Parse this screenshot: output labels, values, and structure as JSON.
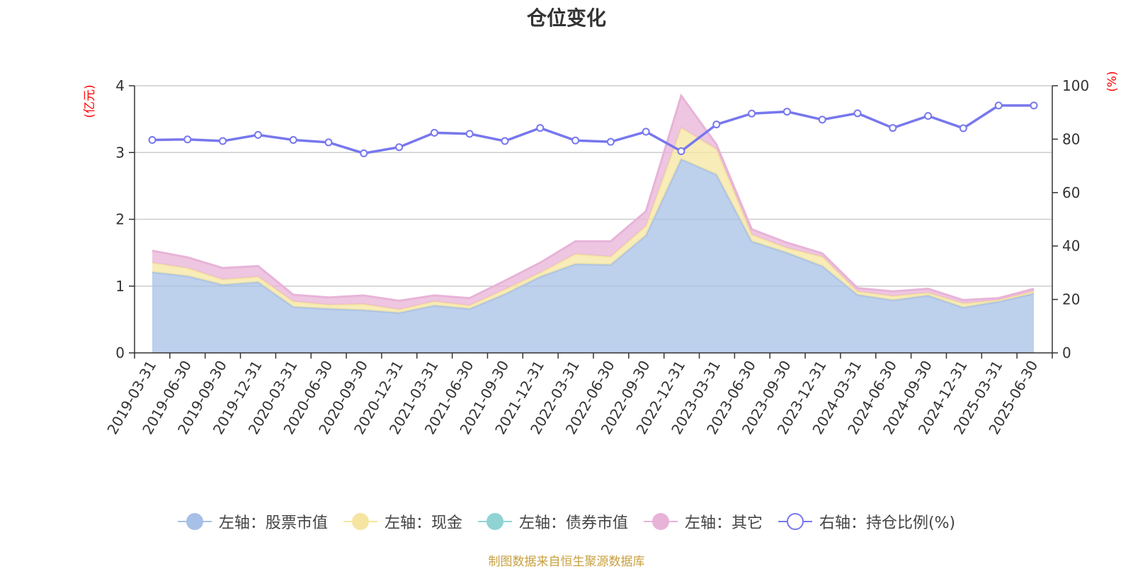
{
  "title": "仓位变化",
  "source": "制图数据来自恒生聚源数据库",
  "left_unit": "(亿元)",
  "right_unit": "(%)",
  "chart_data": {
    "type": "area",
    "title": "仓位变化",
    "categories": [
      "2019-03-31",
      "2019-06-30",
      "2019-09-30",
      "2019-12-31",
      "2020-03-31",
      "2020-06-30",
      "2020-09-30",
      "2020-12-31",
      "2021-03-31",
      "2021-06-30",
      "2021-09-30",
      "2021-12-31",
      "2022-03-31",
      "2022-06-30",
      "2022-09-30",
      "2022-12-31",
      "2023-03-31",
      "2023-06-30",
      "2023-09-30",
      "2023-12-31",
      "2024-03-31",
      "2024-06-30",
      "2024-09-30",
      "2024-12-31",
      "2025-03-31",
      "2025-06-30"
    ],
    "left_axis": {
      "ylim": [
        0,
        4
      ],
      "ticks": [
        "0",
        "1",
        "2",
        "3",
        "4"
      ],
      "unit": "(亿元)"
    },
    "right_axis": {
      "ylim": [
        0,
        100
      ],
      "ticks": [
        "0",
        "20",
        "40",
        "60",
        "80",
        "100"
      ],
      "unit": "(%)"
    },
    "series": [
      {
        "name": "左轴：股票市值",
        "axis": "left",
        "stack": true,
        "color": "#a7c0e6",
        "values": [
          1.21,
          1.15,
          1.02,
          1.06,
          0.69,
          0.66,
          0.64,
          0.6,
          0.71,
          0.66,
          0.88,
          1.14,
          1.33,
          1.32,
          1.76,
          2.9,
          2.67,
          1.67,
          1.5,
          1.3,
          0.87,
          0.79,
          0.86,
          0.68,
          0.77,
          0.89
        ]
      },
      {
        "name": "左轴：现金",
        "axis": "left",
        "stack": true,
        "color": "#f5e5a0",
        "values": [
          0.14,
          0.12,
          0.08,
          0.08,
          0.08,
          0.06,
          0.09,
          0.05,
          0.06,
          0.05,
          0.07,
          0.06,
          0.15,
          0.12,
          0.14,
          0.47,
          0.38,
          0.1,
          0.07,
          0.14,
          0.05,
          0.06,
          0.04,
          0.06,
          0.02,
          0.03
        ]
      },
      {
        "name": "左轴：债券市值",
        "axis": "left",
        "stack": true,
        "color": "#8fd3d3",
        "values": [
          0,
          0,
          0,
          0,
          0,
          0,
          0,
          0,
          0,
          0,
          0,
          0,
          0,
          0,
          0,
          0,
          0,
          0,
          0,
          0,
          0,
          0,
          0,
          0,
          0,
          0
        ]
      },
      {
        "name": "左轴：其它",
        "axis": "left",
        "stack": true,
        "color": "#e8b3d8",
        "values": [
          0.18,
          0.16,
          0.17,
          0.16,
          0.1,
          0.11,
          0.13,
          0.13,
          0.09,
          0.11,
          0.13,
          0.15,
          0.19,
          0.23,
          0.22,
          0.48,
          0.07,
          0.08,
          0.08,
          0.05,
          0.05,
          0.07,
          0.06,
          0.05,
          0.03,
          0.04
        ]
      },
      {
        "name": "右轴：持仓比例(%)",
        "axis": "right",
        "stack": false,
        "color": "#7777ee",
        "values": [
          79.7,
          79.9,
          79.3,
          81.6,
          79.7,
          78.8,
          74.7,
          77.0,
          82.4,
          82.0,
          79.3,
          84.2,
          79.5,
          79.0,
          82.8,
          75.5,
          85.5,
          89.6,
          90.3,
          87.3,
          89.7,
          84.2,
          88.7,
          84.1,
          92.6,
          92.6
        ]
      }
    ],
    "grid": true,
    "legend": "bottom"
  }
}
